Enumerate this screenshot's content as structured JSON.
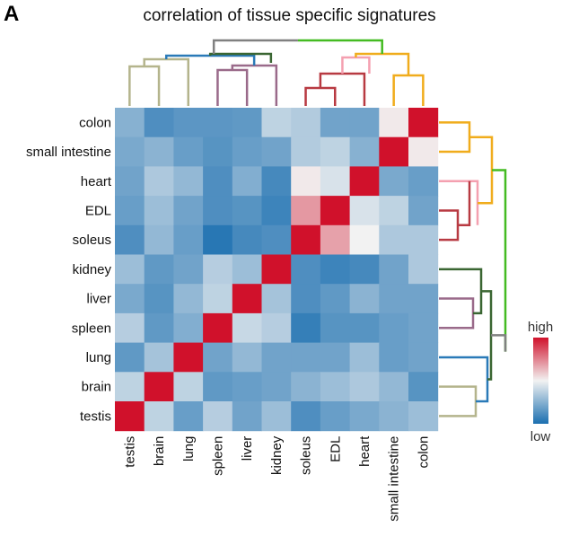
{
  "panel_label": "A",
  "chart_data": {
    "type": "heatmap",
    "title": "correlation of tissue specific signatures",
    "rows": [
      "colon",
      "small intestine",
      "heart",
      "EDL",
      "soleus",
      "kidney",
      "liver",
      "spleen",
      "lung",
      "brain",
      "testis"
    ],
    "columns": [
      "testis",
      "brain",
      "lung",
      "spleen",
      "liver",
      "kidney",
      "soleus",
      "EDL",
      "heart",
      "small intestine",
      "colon"
    ],
    "values": [
      [
        0.25,
        0.12,
        0.15,
        0.15,
        0.16,
        0.38,
        0.35,
        0.2,
        0.2,
        0.52,
        1.0
      ],
      [
        0.22,
        0.26,
        0.18,
        0.14,
        0.18,
        0.2,
        0.35,
        0.38,
        0.25,
        1.0,
        0.52
      ],
      [
        0.2,
        0.34,
        0.28,
        0.12,
        0.24,
        0.1,
        0.52,
        0.44,
        1.0,
        0.22,
        0.18
      ],
      [
        0.18,
        0.3,
        0.2,
        0.12,
        0.14,
        0.08,
        0.7,
        1.0,
        0.44,
        0.38,
        0.2
      ],
      [
        0.12,
        0.28,
        0.18,
        0.03,
        0.1,
        0.12,
        1.0,
        0.68,
        0.5,
        0.34,
        0.34
      ],
      [
        0.3,
        0.16,
        0.2,
        0.36,
        0.3,
        1.0,
        0.12,
        0.08,
        0.1,
        0.2,
        0.34
      ],
      [
        0.22,
        0.14,
        0.28,
        0.38,
        1.0,
        0.32,
        0.12,
        0.16,
        0.26,
        0.2,
        0.2
      ],
      [
        0.36,
        0.16,
        0.24,
        1.0,
        0.4,
        0.36,
        0.06,
        0.14,
        0.14,
        0.18,
        0.2
      ],
      [
        0.16,
        0.32,
        1.0,
        0.2,
        0.28,
        0.2,
        0.2,
        0.2,
        0.3,
        0.18,
        0.2
      ],
      [
        0.38,
        1.0,
        0.38,
        0.16,
        0.18,
        0.2,
        0.26,
        0.3,
        0.34,
        0.28,
        0.14
      ],
      [
        1.0,
        0.38,
        0.18,
        0.36,
        0.2,
        0.3,
        0.12,
        0.18,
        0.22,
        0.26,
        0.3
      ]
    ],
    "legend": {
      "high_label": "high",
      "low_label": "low",
      "low_color": "#1b6fb0",
      "mid_color": "#f2f2f2",
      "high_color": "#d0112b"
    },
    "dendrogram_colors": {
      "root": "#808080",
      "right_top": "#44bb22",
      "muscle_gut": "#f0ac1c",
      "muscle": "#f4a0b0",
      "skeletal_muscle": "#b83a42",
      "immune_kidney": "#3a6632",
      "liver_spleen": "#9a6a8a",
      "lung": "#2a7ab8",
      "brain_testis": "#b4b48c"
    }
  }
}
